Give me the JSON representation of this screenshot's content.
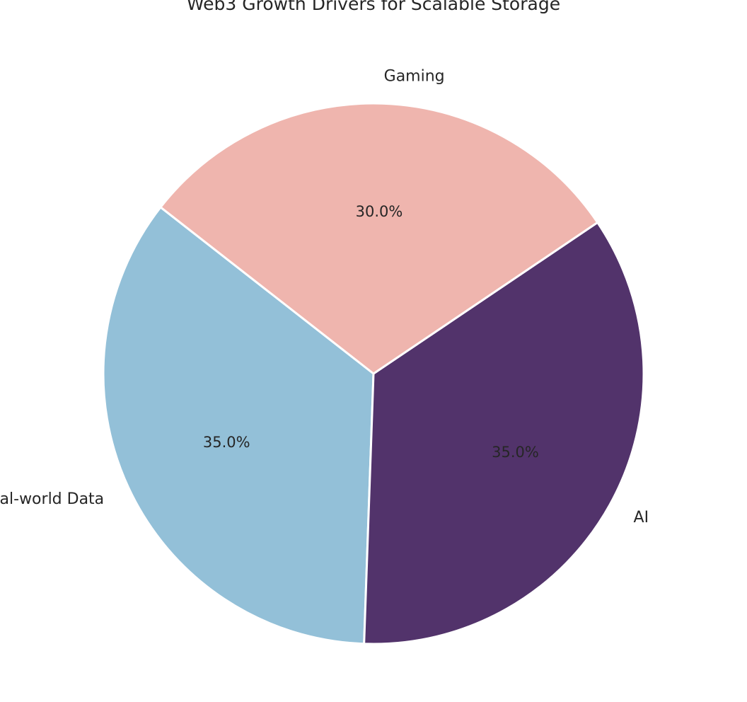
{
  "chart_data": {
    "type": "pie",
    "title": "Web3 Growth Drivers for Scalable Storage",
    "slices": [
      {
        "label": "Real-world Data",
        "value": 35.0,
        "pct_label": "35.0%",
        "color": "#93c0d8"
      },
      {
        "label": "AI",
        "value": 35.0,
        "pct_label": "35.0%",
        "color": "#52336b"
      },
      {
        "label": "Gaming",
        "value": 30.0,
        "pct_label": "30.0%",
        "color": "#efb5ae"
      }
    ],
    "legend": "none"
  }
}
